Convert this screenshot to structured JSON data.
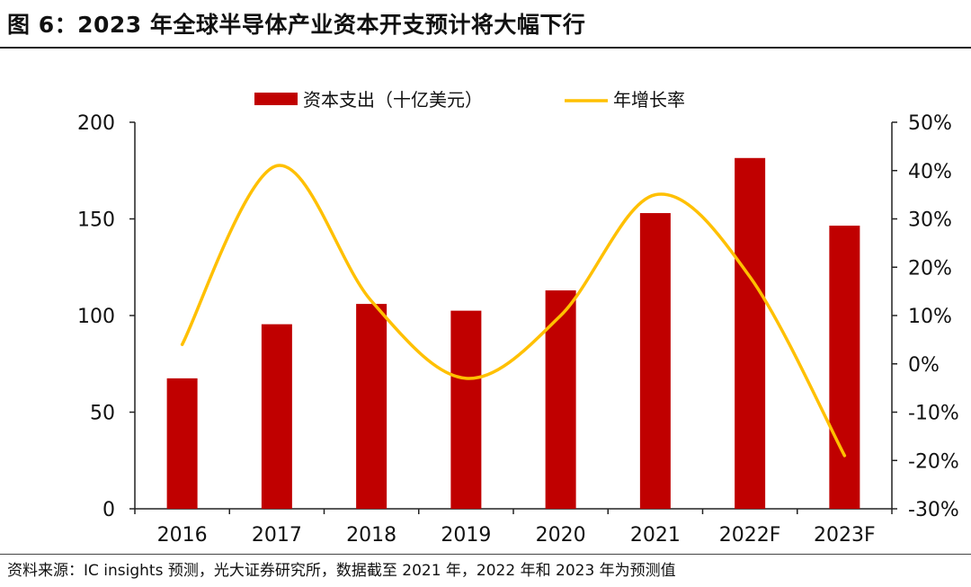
{
  "title": "图 6：2023 年全球半导体产业资本开支预计将大幅下行",
  "source": "资料来源：IC insights 预测，光大证券研究所，数据截至 2021 年，2022 年和 2023 年为预测值",
  "chart_data": {
    "type": "bar",
    "categories": [
      "2016",
      "2017",
      "2018",
      "2019",
      "2020",
      "2021",
      "2022F",
      "2023F"
    ],
    "series": [
      {
        "name": "资本支出（十亿美元）",
        "type": "bar",
        "axis": "left",
        "color": "#C00000",
        "values": [
          67.5,
          95.5,
          106,
          102.5,
          113,
          153,
          181.5,
          146.5
        ]
      },
      {
        "name": "年增长率",
        "type": "line",
        "axis": "right",
        "color": "#FFC000",
        "values": [
          4,
          41,
          13,
          -3,
          10,
          35,
          18,
          -19
        ]
      }
    ],
    "ylim_left": [
      0,
      200
    ],
    "yticks_left": [
      0,
      50,
      100,
      150,
      200
    ],
    "ytick_labels_left": [
      "0",
      "50",
      "100",
      "150",
      "200"
    ],
    "ylim_right": [
      -30,
      50
    ],
    "yticks_right": [
      -30,
      -20,
      -10,
      0,
      10,
      20,
      30,
      40,
      50
    ],
    "ytick_labels_right": [
      "-30%",
      "-20%",
      "-10%",
      "0%",
      "10%",
      "20%",
      "30%",
      "40%",
      "50%"
    ],
    "legend_position": "top-center",
    "grid": false
  }
}
